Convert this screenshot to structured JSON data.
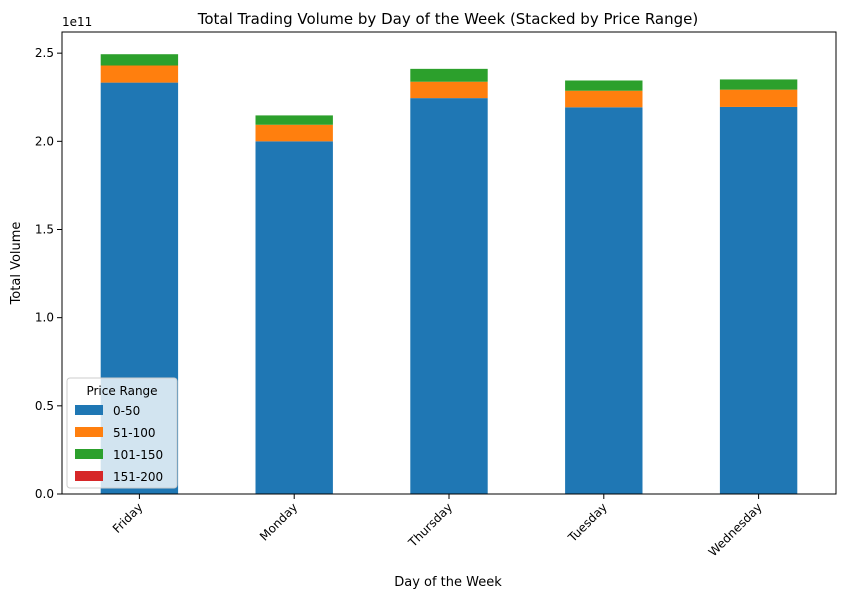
{
  "chart_data": {
    "type": "bar",
    "stacked": true,
    "title": "Total Trading Volume by Day of the Week (Stacked by Price Range)",
    "xlabel": "Day of the Week",
    "ylabel": "Total Volume",
    "y_offset_label": "1e11",
    "categories": [
      "Friday",
      "Monday",
      "Thursday",
      "Tuesday",
      "Wednesday"
    ],
    "y_ticks": [
      "0.0",
      "0.5",
      "1.0",
      "1.5",
      "2.0",
      "2.5"
    ],
    "ylim": [
      0,
      2.62
    ],
    "legend": {
      "title": "Price Range",
      "placement": "lower-left"
    },
    "series": [
      {
        "name": "0-50",
        "color": "#1f77b4",
        "values": [
          2.333,
          2.0,
          2.245,
          2.193,
          2.195
        ]
      },
      {
        "name": "51-100",
        "color": "#ff7f0e",
        "values": [
          0.097,
          0.094,
          0.093,
          0.094,
          0.098
        ]
      },
      {
        "name": "101-150",
        "color": "#2ca02c",
        "values": [
          0.064,
          0.053,
          0.073,
          0.058,
          0.058
        ]
      },
      {
        "name": "151-200",
        "color": "#d62728",
        "values": [
          0.0,
          0.0,
          0.0,
          0.0,
          0.0
        ]
      }
    ]
  }
}
